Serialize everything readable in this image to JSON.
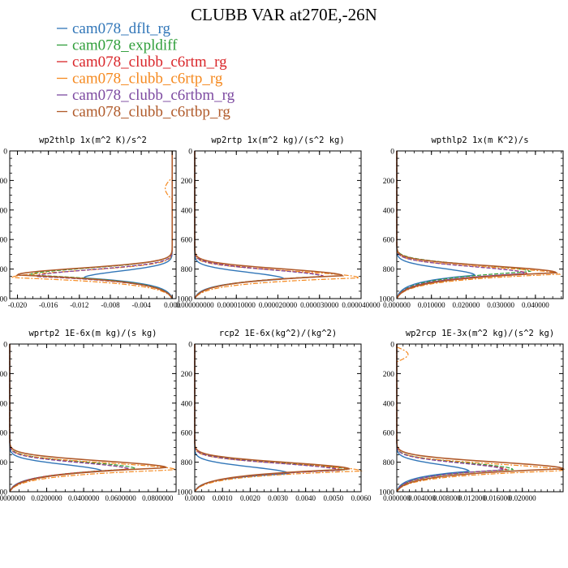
{
  "chart_data": {
    "type": "line",
    "title": "CLUBB VAR at270E,-26N",
    "legend": [
      {
        "name": "cam078_dflt_rg",
        "color": "#3176b8"
      },
      {
        "name": "cam078_expldiff",
        "color": "#2f9e3a"
      },
      {
        "name": "cam078_clubb_c6rtm_rg",
        "color": "#d9262a"
      },
      {
        "name": "cam078_clubb_c6rtp_rg",
        "color": "#f5891f"
      },
      {
        "name": "cam078_clubb_c6rtbm_rg",
        "color": "#7d4aa1"
      },
      {
        "name": "cam078_clubb_c6rtbp_rg",
        "color": "#b05a2a"
      }
    ],
    "y_axis": {
      "range": [
        1000,
        0
      ],
      "ticks": [
        "0",
        "200",
        "400",
        "600",
        "800",
        "1000"
      ]
    },
    "panels": [
      {
        "title": "wp2thlp   1x(m^2 K)/s^2",
        "xlim": [
          -0.021,
          0.0005
        ],
        "xticks": [
          -0.02,
          -0.016,
          -0.012,
          -0.008,
          -0.004,
          0.0
        ],
        "xtick_labels": [
          "-0.020",
          "-0.016",
          "-0.012",
          "-0.008",
          "-0.004",
          "0.000"
        ],
        "peaks": [
          -0.0114,
          -0.0185,
          -0.0176,
          -0.0208,
          -0.0176,
          -0.02
        ],
        "peak_levels": [
          860,
          840,
          850,
          858,
          850,
          840
        ]
      },
      {
        "title": "wp2rtp   1x(m^2 kg)/(s^2 kg)",
        "xlim": [
          0.0,
          4e-05
        ],
        "xticks": [
          0.0,
          1e-05,
          2e-05,
          3e-05,
          4e-05
        ],
        "xtick_labels": [
          "0.000000000",
          "0.000010000",
          "0.000020000",
          "0.000030000",
          "0.000040000"
        ],
        "peaks": [
          2.15e-05,
          3.05e-05,
          3.1e-05,
          3.95e-05,
          3.1e-05,
          3.55e-05
        ],
        "peak_levels": [
          868,
          850,
          850,
          860,
          852,
          845
        ]
      },
      {
        "title": "wpthlp2   1x(m K^2)/s",
        "xlim": [
          0.0,
          0.048
        ],
        "xticks": [
          0.0,
          0.01,
          0.02,
          0.03,
          0.04
        ],
        "xtick_labels": [
          "0.000000",
          "0.010000",
          "0.020000",
          "0.030000",
          "0.040000"
        ],
        "peaks": [
          0.0225,
          0.0385,
          0.0375,
          0.047,
          0.037,
          0.046
        ],
        "peak_levels": [
          842,
          818,
          830,
          835,
          830,
          825
        ]
      },
      {
        "title": "wprtp2   1E-6x(m kg)/(s kg)",
        "xlim": [
          0.0,
          0.09
        ],
        "xticks": [
          0.0,
          0.02,
          0.04,
          0.06,
          0.08
        ],
        "xtick_labels": [
          "0.0000000",
          "0.0200000",
          "0.0400000",
          "0.0600000",
          "0.0800000"
        ],
        "peaks": [
          0.05,
          0.068,
          0.064,
          0.09,
          0.065,
          0.085
        ],
        "peak_levels": [
          862,
          845,
          848,
          852,
          850,
          838
        ]
      },
      {
        "title": "rcp2   1E-6x(kg^2)/(kg^2)",
        "xlim": [
          0.0,
          0.006
        ],
        "xticks": [
          0.0,
          0.001,
          0.002,
          0.003,
          0.004,
          0.005,
          0.006
        ],
        "xtick_labels": [
          "0.0000",
          "0.0010",
          "0.0020",
          "0.0030",
          "0.0040",
          "0.0050",
          "0.0060"
        ],
        "peaks": [
          0.0034,
          0.0055,
          0.0053,
          0.006,
          0.0052,
          0.0056
        ],
        "peak_levels": [
          878,
          852,
          855,
          860,
          855,
          848
        ]
      },
      {
        "title": "wp2rcp   1E-3x(m^2 kg)/(s^2 kg)",
        "xlim": [
          0.0,
          0.0265
        ],
        "xticks": [
          0.0,
          0.004,
          0.008,
          0.012,
          0.016,
          0.02
        ],
        "xtick_labels": [
          "0.000000",
          "0.004000",
          "0.008000",
          "0.012000",
          "0.016000",
          "0.020000"
        ],
        "peaks": [
          0.0115,
          0.0185,
          0.0175,
          0.0265,
          0.017,
          0.0265
        ],
        "peak_levels": [
          862,
          850,
          852,
          858,
          852,
          845
        ]
      }
    ]
  }
}
